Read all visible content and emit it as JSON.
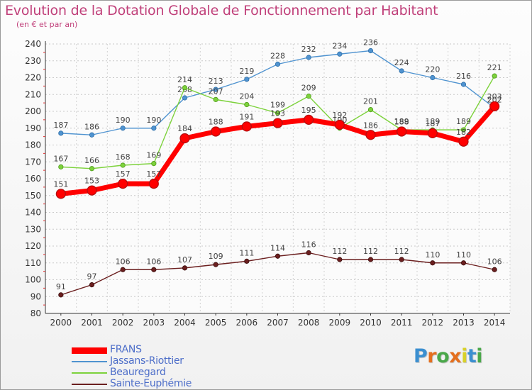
{
  "header": {
    "title": "Evolution de la Dotation Globale de Fonctionnement par Habitant",
    "subtitle": "(en € et par an)"
  },
  "brand": {
    "letters": [
      "P",
      "r",
      "o",
      "x",
      "i",
      "t",
      "i"
    ],
    "colors": [
      "#3b8fd0",
      "#e46f1e",
      "#4aa84a",
      "#e46f1e",
      "#d8d12a",
      "#3b8fd0",
      "#4aa84a"
    ]
  },
  "chart_data": {
    "type": "line",
    "x": [
      "2000",
      "2001",
      "2002",
      "2003",
      "2004",
      "2005",
      "2006",
      "2007",
      "2008",
      "2009",
      "2010",
      "2011",
      "2012",
      "2013",
      "2014"
    ],
    "ylim": [
      80,
      240
    ],
    "yticks": [
      80,
      90,
      100,
      110,
      120,
      130,
      140,
      150,
      160,
      170,
      180,
      190,
      200,
      210,
      220,
      230,
      240
    ],
    "grid": true,
    "legend_position": "bottom-left",
    "series": [
      {
        "name": "Jassans-Riottier",
        "color": "#4f93d0",
        "values": [
          187,
          186,
          190,
          190,
          208,
          213,
          219,
          228,
          232,
          234,
          236,
          224,
          220,
          216,
          202
        ]
      },
      {
        "name": "Beauregard",
        "color": "#7dd23c",
        "values": [
          167,
          166,
          168,
          169,
          214,
          207,
          204,
          199,
          209,
          190,
          201,
          189,
          189,
          189,
          221
        ]
      },
      {
        "name": "Sainte-Euphémie",
        "color": "#6b1f1f",
        "values": [
          91,
          97,
          106,
          106,
          107,
          109,
          111,
          114,
          116,
          112,
          112,
          112,
          110,
          110,
          106
        ]
      },
      {
        "name": "FRANS",
        "color": "#ff0000",
        "values": [
          151,
          153,
          157,
          157,
          184,
          188,
          191,
          193,
          195,
          192,
          186,
          188,
          187,
          182,
          203
        ]
      }
    ]
  }
}
